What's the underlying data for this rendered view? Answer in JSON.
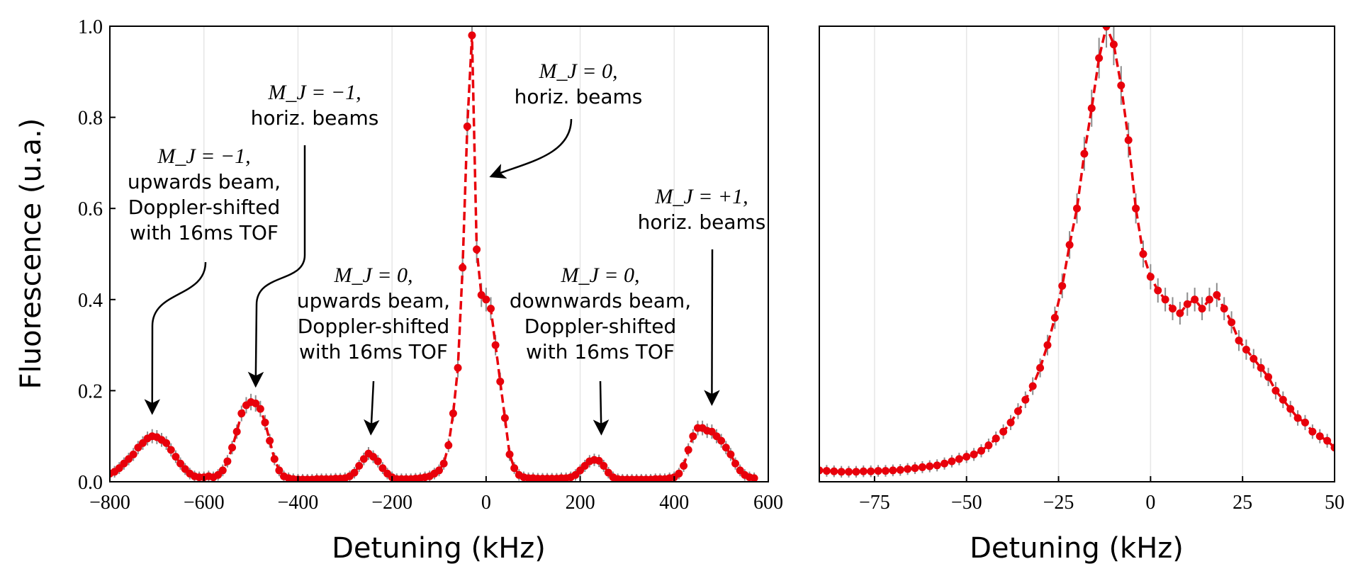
{
  "chart_data": [
    {
      "type": "line",
      "xlabel": "Detuning (kHz)",
      "ylabel": "Fluorescence (u.a.)",
      "xlim": [
        -800,
        600
      ],
      "ylim": [
        0,
        1
      ],
      "xticks": [
        -800,
        -600,
        -400,
        -200,
        0,
        200,
        400,
        600
      ],
      "xtick_labels": [
        "−800",
        "−600",
        "−400",
        "−200",
        "0",
        "200",
        "400",
        "600"
      ],
      "yticks": [
        0,
        0.2,
        0.4,
        0.6,
        0.8,
        1.0
      ],
      "ytick_labels": [
        "0.0",
        "0.2",
        "0.4",
        "0.6",
        "0.8",
        "1.0"
      ],
      "grid": "vertical",
      "series": [
        {
          "style": "red dashed line with red circle markers and grey error bars",
          "color": "#e8000b",
          "x": [
            -800,
            -790,
            -780,
            -770,
            -760,
            -750,
            -740,
            -730,
            -720,
            -710,
            -700,
            -690,
            -680,
            -670,
            -660,
            -650,
            -640,
            -630,
            -620,
            -610,
            -600,
            -590,
            -580,
            -570,
            -560,
            -550,
            -540,
            -530,
            -520,
            -510,
            -500,
            -490,
            -480,
            -470,
            -460,
            -450,
            -440,
            -430,
            -420,
            -410,
            -400,
            -390,
            -380,
            -370,
            -360,
            -350,
            -340,
            -330,
            -320,
            -310,
            -300,
            -290,
            -280,
            -270,
            -260,
            -250,
            -240,
            -230,
            -220,
            -210,
            -200,
            -190,
            -180,
            -170,
            -160,
            -150,
            -140,
            -130,
            -120,
            -110,
            -100,
            -90,
            -80,
            -70,
            -60,
            -50,
            -40,
            -30,
            -20,
            -10,
            0,
            10,
            20,
            30,
            40,
            50,
            60,
            70,
            80,
            90,
            100,
            110,
            120,
            130,
            140,
            150,
            160,
            170,
            180,
            190,
            200,
            210,
            220,
            230,
            240,
            250,
            260,
            270,
            280,
            290,
            300,
            310,
            320,
            330,
            340,
            350,
            360,
            370,
            380,
            390,
            400,
            410,
            420,
            430,
            440,
            450,
            460,
            470,
            480,
            490,
            500,
            510,
            520,
            530,
            540,
            550,
            560,
            570
          ],
          "y": [
            0.018,
            0.022,
            0.03,
            0.04,
            0.05,
            0.06,
            0.075,
            0.085,
            0.095,
            0.1,
            0.098,
            0.092,
            0.085,
            0.07,
            0.055,
            0.04,
            0.028,
            0.018,
            0.012,
            0.01,
            0.01,
            0.012,
            0.01,
            0.015,
            0.025,
            0.045,
            0.075,
            0.11,
            0.15,
            0.168,
            0.175,
            0.172,
            0.16,
            0.13,
            0.09,
            0.05,
            0.025,
            0.012,
            0.008,
            0.006,
            0.005,
            0.005,
            0.005,
            0.005,
            0.006,
            0.006,
            0.006,
            0.006,
            0.007,
            0.007,
            0.008,
            0.012,
            0.02,
            0.035,
            0.05,
            0.062,
            0.055,
            0.045,
            0.03,
            0.018,
            0.01,
            0.006,
            0.006,
            0.006,
            0.006,
            0.007,
            0.008,
            0.01,
            0.012,
            0.018,
            0.025,
            0.04,
            0.08,
            0.15,
            0.25,
            0.47,
            0.78,
            0.98,
            0.51,
            0.41,
            0.4,
            0.38,
            0.3,
            0.22,
            0.14,
            0.06,
            0.03,
            0.015,
            0.01,
            0.008,
            0.008,
            0.007,
            0.007,
            0.007,
            0.007,
            0.007,
            0.008,
            0.008,
            0.01,
            0.015,
            0.025,
            0.035,
            0.045,
            0.048,
            0.046,
            0.035,
            0.02,
            0.01,
            0.006,
            0.005,
            0.005,
            0.005,
            0.005,
            0.005,
            0.005,
            0.005,
            0.006,
            0.006,
            0.006,
            0.008,
            0.01,
            0.018,
            0.035,
            0.07,
            0.1,
            0.118,
            0.118,
            0.112,
            0.11,
            0.1,
            0.09,
            0.075,
            0.06,
            0.04,
            0.025,
            0.015,
            0.01,
            0.008
          ]
        }
      ],
      "annotations": [
        {
          "math": "M_J = −1,",
          "lines": [
            "upwards beam,",
            "Doppler-shifted",
            "with 16ms TOF"
          ],
          "target": [
            -710,
            0.15
          ]
        },
        {
          "math": "M_J = −1,",
          "lines": [
            "horiz. beams"
          ],
          "target": [
            -490,
            0.21
          ]
        },
        {
          "math": "M_J = 0,",
          "lines": [
            "upwards beam,",
            "Doppler-shifted",
            "with 16ms TOF"
          ],
          "target": [
            -245,
            0.105
          ]
        },
        {
          "math": "M_J = 0,",
          "lines": [
            "horiz. beams"
          ],
          "target": [
            10,
            0.67
          ]
        },
        {
          "math": "M_J = 0,",
          "lines": [
            "downwards beam,",
            "Doppler-shifted",
            "with 16ms TOF"
          ],
          "target": [
            245,
            0.105
          ]
        },
        {
          "math": "M_J = +1,",
          "lines": [
            "horiz. beams"
          ],
          "target": [
            480,
            0.17
          ]
        }
      ]
    },
    {
      "type": "line",
      "xlabel": "Detuning (kHz)",
      "xlim": [
        -90,
        50
      ],
      "ylim": [
        0,
        1
      ],
      "xticks": [
        -75,
        -50,
        -25,
        0,
        25,
        50
      ],
      "xtick_labels": [
        "−75",
        "−50",
        "−25",
        "0",
        "25",
        "50"
      ],
      "grid": "vertical",
      "series": [
        {
          "style": "red dashed line with red circle markers and grey error bars",
          "color": "#e8000b",
          "x": [
            -90,
            -88,
            -86,
            -84,
            -82,
            -80,
            -78,
            -76,
            -74,
            -72,
            -70,
            -68,
            -66,
            -64,
            -62,
            -60,
            -58,
            -56,
            -54,
            -52,
            -50,
            -48,
            -46,
            -44,
            -42,
            -40,
            -38,
            -36,
            -34,
            -32,
            -30,
            -28,
            -26,
            -24,
            -22,
            -20,
            -18,
            -16,
            -14,
            -12,
            -10,
            -8,
            -6,
            -4,
            -2,
            0,
            2,
            4,
            6,
            8,
            10,
            12,
            14,
            16,
            18,
            20,
            22,
            24,
            26,
            28,
            30,
            32,
            34,
            36,
            38,
            40,
            42,
            44,
            46,
            48,
            50
          ],
          "y": [
            0.025,
            0.024,
            0.023,
            0.022,
            0.022,
            0.022,
            0.023,
            0.023,
            0.024,
            0.024,
            0.025,
            0.026,
            0.028,
            0.03,
            0.032,
            0.034,
            0.036,
            0.04,
            0.045,
            0.05,
            0.055,
            0.06,
            0.068,
            0.08,
            0.095,
            0.11,
            0.13,
            0.155,
            0.18,
            0.21,
            0.25,
            0.3,
            0.36,
            0.43,
            0.52,
            0.6,
            0.72,
            0.82,
            0.93,
            1.0,
            0.96,
            0.87,
            0.75,
            0.6,
            0.5,
            0.45,
            0.42,
            0.4,
            0.38,
            0.37,
            0.39,
            0.4,
            0.38,
            0.4,
            0.41,
            0.38,
            0.35,
            0.31,
            0.29,
            0.27,
            0.25,
            0.23,
            0.2,
            0.18,
            0.16,
            0.14,
            0.13,
            0.11,
            0.1,
            0.09,
            0.075
          ]
        }
      ]
    }
  ]
}
